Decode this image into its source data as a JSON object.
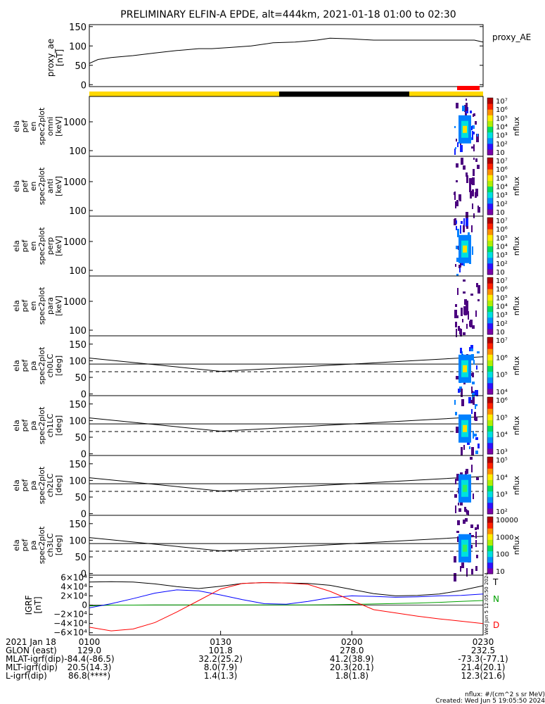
{
  "title": "PRELIMINARY ELFIN-A EPDE, alt=444km, 2021-01-18 01:00 to 02:30",
  "colors": {
    "science_bar": "#ffd800",
    "eclipse_bar": "#000000",
    "burst_bar": "#ff0000",
    "igrf_T": "#000000",
    "igrf_N": "#00a000",
    "igrf_E": "#0000ff",
    "igrf_D": "#ff0000"
  },
  "chart_data": [
    {
      "type": "line",
      "name": "proxy_ae",
      "ylabel": "proxy_ae",
      "yunit": "[nT]",
      "legend": "proxy_AE",
      "ylim": [
        -5,
        155
      ],
      "yticks": [
        "0",
        "50",
        "100",
        "150"
      ],
      "x_minutes": [
        0,
        2,
        5,
        10,
        15,
        20,
        25,
        28,
        32,
        37,
        42,
        47,
        52,
        55,
        60,
        65,
        70,
        75,
        80,
        85,
        88,
        90
      ],
      "values": [
        55,
        65,
        70,
        75,
        82,
        88,
        93,
        93,
        96,
        100,
        108,
        110,
        115,
        120,
        118,
        115,
        115,
        115,
        115,
        115,
        115,
        110
      ]
    },
    {
      "type": "heatmap",
      "name": "spec-omni",
      "ylabel_lines": [
        "ela",
        "pef",
        "en",
        "spec2plot",
        "omni",
        "[keV]"
      ],
      "yticks": [
        "100",
        "1000"
      ],
      "colorbar_ticks": [
        "10",
        "10²",
        "10³",
        "10⁴",
        "10⁵",
        "10⁶",
        "10⁷"
      ],
      "colorbar_label": "nflux"
    },
    {
      "type": "heatmap",
      "name": "spec-anti",
      "ylabel_lines": [
        "ela",
        "pef",
        "en",
        "spec2plot",
        "anti",
        "[keV]"
      ],
      "yticks": [
        "100",
        "1000"
      ],
      "colorbar_ticks": [
        "10",
        "10²",
        "10³",
        "10⁴",
        "10⁵",
        "10⁶",
        "10⁷"
      ],
      "colorbar_label": "nflux"
    },
    {
      "type": "heatmap",
      "name": "spec-perp",
      "ylabel_lines": [
        "ela",
        "pef",
        "en",
        "spec2plot",
        "perp",
        "[keV]"
      ],
      "yticks": [
        "100",
        "1000"
      ],
      "colorbar_ticks": [
        "10",
        "10²",
        "10³",
        "10⁴",
        "10⁵",
        "10⁶",
        "10⁷"
      ],
      "colorbar_label": "nflux"
    },
    {
      "type": "heatmap",
      "name": "spec-para",
      "ylabel_lines": [
        "ela",
        "pef",
        "en",
        "spec2plot",
        "para",
        "[keV]"
      ],
      "yticks": [
        "100",
        "1000"
      ],
      "colorbar_ticks": [
        "10",
        "10²",
        "10³",
        "10⁴",
        "10⁵",
        "10⁶",
        "10⁷"
      ],
      "colorbar_label": "nflux"
    },
    {
      "type": "heatmap",
      "name": "pa-ch0",
      "ylabel_lines": [
        "ela",
        "pef",
        "pa",
        "spec2plot",
        "ch0LC",
        "[deg]"
      ],
      "ylim": [
        -5,
        175
      ],
      "yticks": [
        "0",
        "50",
        "100",
        "150"
      ],
      "colorbar_ticks": [
        "10⁴",
        "10⁵",
        "10⁶",
        "10⁷"
      ],
      "colorbar_label": "nflux"
    },
    {
      "type": "heatmap",
      "name": "pa-ch1",
      "ylabel_lines": [
        "ela",
        "pef",
        "pa",
        "spec2plot",
        "ch1LC",
        "[deg]"
      ],
      "ylim": [
        -5,
        175
      ],
      "yticks": [
        "0",
        "50",
        "100",
        "150"
      ],
      "colorbar_ticks": [
        "10³",
        "10⁴",
        "10⁵",
        "10⁶"
      ],
      "colorbar_label": "nflux"
    },
    {
      "type": "heatmap",
      "name": "pa-ch2",
      "ylabel_lines": [
        "ela",
        "pef",
        "pa",
        "spec2plot",
        "ch2LC",
        "[deg]"
      ],
      "ylim": [
        -5,
        175
      ],
      "yticks": [
        "0",
        "50",
        "100",
        "150"
      ],
      "colorbar_ticks": [
        "10²",
        "10³",
        "10⁴",
        "10⁵"
      ],
      "colorbar_label": "nflux"
    },
    {
      "type": "heatmap",
      "name": "pa-ch3",
      "ylabel_lines": [
        "ela",
        "pef",
        "pa",
        "spec2plot",
        "ch3LC",
        "[deg]"
      ],
      "ylim": [
        -5,
        175
      ],
      "yticks": [
        "0",
        "50",
        "100",
        "150"
      ],
      "colorbar_ticks": [
        "10",
        "100",
        "1000",
        "10000"
      ],
      "colorbar_label": "nflux"
    },
    {
      "type": "line",
      "name": "igrf",
      "ylabel_lines": [
        "IGRF",
        "[nT]"
      ],
      "ylim": [
        -65000,
        65000
      ],
      "yticks": [
        "6×10⁴",
        "4×10⁴",
        "2×10⁴",
        "0",
        "−2×10⁴",
        "−4×10⁴",
        "−6×10⁴"
      ],
      "x_minutes": [
        0,
        5,
        10,
        15,
        20,
        25,
        30,
        35,
        40,
        45,
        50,
        55,
        60,
        65,
        70,
        75,
        80,
        85,
        90
      ],
      "series": [
        {
          "name": "T",
          "values": [
            50000,
            51000,
            50000,
            46000,
            40000,
            36000,
            41000,
            47000,
            49000,
            48000,
            47000,
            43000,
            34000,
            25000,
            20000,
            21000,
            24000,
            32000,
            42000
          ]
        },
        {
          "name": "N",
          "values": [
            -2000,
            0,
            0,
            500,
            500,
            500,
            500,
            500,
            500,
            500,
            500,
            800,
            1500,
            2500,
            3500,
            4500,
            6000,
            8000,
            10000
          ]
        },
        {
          "name": "E",
          "values": [
            -6000,
            3000,
            14000,
            26000,
            33000,
            31000,
            22000,
            12000,
            3000,
            2000,
            8000,
            16000,
            20000,
            19000,
            17000,
            18000,
            20000,
            21000,
            24000
          ]
        },
        {
          "name": "D",
          "values": [
            -48000,
            -56000,
            -52000,
            -38000,
            -15000,
            10000,
            35000,
            47000,
            49000,
            48000,
            45000,
            30000,
            10000,
            -10000,
            -17000,
            -24000,
            -30000,
            -35000,
            -40000
          ]
        }
      ],
      "legend_labels": [
        "T",
        "N",
        "D"
      ]
    }
  ],
  "pa_lines": {
    "solid_x_minutes": [
      0,
      30,
      90
    ],
    "solid_values": [
      108,
      68,
      112
    ],
    "flat_value": 90,
    "dashed_value": 67
  },
  "stamp": "Wed Jun  5 12:05:50 2024",
  "x_axis": {
    "ticks": [
      "0100",
      "0130",
      "0200",
      "0230"
    ],
    "tick_minutes": [
      0,
      30,
      60,
      90
    ],
    "rows": [
      {
        "label": "2021 Jan 18",
        "values": [
          "0100",
          "0130",
          "0200",
          "0230"
        ]
      },
      {
        "label": "GLON (east)",
        "values": [
          "129.0",
          "101.8",
          "278.0",
          "232.5"
        ]
      },
      {
        "label": "MLAT-igrf(dip)",
        "values": [
          "-84.4(-86.5)",
          "32.2(25.2)",
          "41.2(38.9)",
          "-73.3(-77.1)"
        ]
      },
      {
        "label": "MLT-igrf(dip)",
        "values": [
          "20.5(14.3)",
          "8.0(7.9)",
          "20.3(20.1)",
          "21.4(20.1)"
        ]
      },
      {
        "label": "L-igrf(dip)",
        "values": [
          "86.8(****)",
          "1.4(1.3)",
          "1.8(1.8)",
          "12.3(21.6)"
        ]
      }
    ]
  },
  "footer": {
    "units": "nflux: #/(cm^2 s sr MeV)",
    "created": "Created: Wed Jun  5 19:05:50 2024"
  }
}
